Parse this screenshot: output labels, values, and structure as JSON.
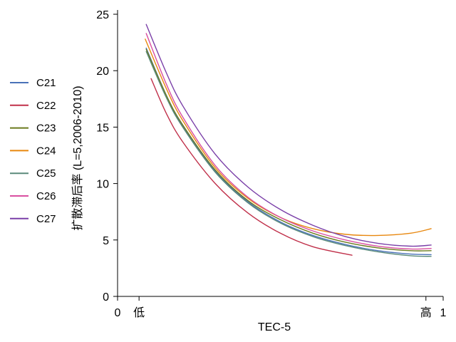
{
  "chart_data": {
    "type": "line",
    "xlabel": "TEC-5",
    "ylabel": "扩散滞后率 (L=5,2006-2010)",
    "xlim": [
      0,
      1
    ],
    "ylim": [
      0,
      25
    ],
    "grid": false,
    "legend_position": "left",
    "x_ticks": [
      {
        "value": 0,
        "label": "0"
      },
      {
        "value": 0.066,
        "label": "低"
      },
      {
        "value": 0.947,
        "label": "高"
      },
      {
        "value": 1,
        "label": "1"
      }
    ],
    "y_ticks": [
      {
        "value": 0,
        "label": "0"
      },
      {
        "value": 5,
        "label": "5"
      },
      {
        "value": 10,
        "label": "10"
      },
      {
        "value": 15,
        "label": "15"
      },
      {
        "value": 20,
        "label": "20"
      },
      {
        "value": 25,
        "label": "25"
      }
    ],
    "series": [
      {
        "name": "C21",
        "color": "#4a72b8",
        "x": [
          0.088,
          0.15,
          0.2,
          0.3,
          0.4,
          0.5,
          0.6,
          0.7,
          0.8,
          0.9,
          0.963
        ],
        "y": [
          22.0,
          17.8,
          15.1,
          11.1,
          8.4,
          6.6,
          5.4,
          4.6,
          4.05,
          3.75,
          3.7
        ]
      },
      {
        "name": "C22",
        "color": "#c0304a",
        "x": [
          0.103,
          0.15,
          0.2,
          0.3,
          0.4,
          0.5,
          0.6,
          0.72
        ],
        "y": [
          19.3,
          16.2,
          13.7,
          10.0,
          7.4,
          5.6,
          4.4,
          3.65
        ]
      },
      {
        "name": "C23",
        "color": "#6b7a1e",
        "x": [
          0.088,
          0.15,
          0.2,
          0.3,
          0.4,
          0.5,
          0.6,
          0.7,
          0.8,
          0.9,
          0.963
        ],
        "y": [
          21.9,
          17.8,
          15.2,
          11.2,
          8.5,
          6.8,
          5.6,
          4.8,
          4.3,
          4.05,
          4.05
        ]
      },
      {
        "name": "C24",
        "color": "#e8870e",
        "x": [
          0.085,
          0.15,
          0.2,
          0.3,
          0.4,
          0.5,
          0.6,
          0.7,
          0.8,
          0.9,
          0.963
        ],
        "y": [
          22.8,
          18.4,
          15.6,
          11.4,
          8.7,
          7.0,
          6.0,
          5.5,
          5.4,
          5.6,
          6.0
        ]
      },
      {
        "name": "C25",
        "color": "#5a8a7a",
        "x": [
          0.088,
          0.15,
          0.2,
          0.3,
          0.4,
          0.5,
          0.6,
          0.7,
          0.8,
          0.9,
          0.963
        ],
        "y": [
          21.7,
          17.6,
          15.0,
          11.0,
          8.3,
          6.5,
          5.3,
          4.5,
          3.95,
          3.6,
          3.55
        ]
      },
      {
        "name": "C26",
        "color": "#d94fa0",
        "x": [
          0.088,
          0.15,
          0.2,
          0.3,
          0.4,
          0.5,
          0.6,
          0.7,
          0.8,
          0.9,
          0.963
        ],
        "y": [
          23.3,
          18.8,
          15.9,
          11.6,
          8.8,
          7.0,
          5.8,
          5.0,
          4.45,
          4.2,
          4.25
        ]
      },
      {
        "name": "C27",
        "color": "#7a3fa8",
        "x": [
          0.088,
          0.15,
          0.2,
          0.3,
          0.4,
          0.5,
          0.6,
          0.7,
          0.8,
          0.9,
          0.963
        ],
        "y": [
          24.1,
          19.8,
          16.9,
          12.6,
          9.7,
          7.7,
          6.3,
          5.3,
          4.7,
          4.45,
          4.55
        ]
      }
    ]
  }
}
